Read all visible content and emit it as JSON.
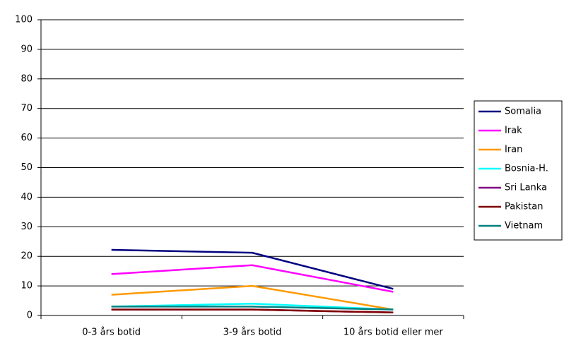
{
  "chart_data": {
    "type": "line",
    "categories": [
      "0-3 års botid",
      "3-9 års botid",
      "10 års botid eller mer"
    ],
    "series": [
      {
        "name": "Somalia",
        "color": "#000080",
        "values": [
          22.2,
          21.2,
          9
        ]
      },
      {
        "name": "Irak",
        "color": "#ff00ff",
        "values": [
          14,
          17,
          8
        ]
      },
      {
        "name": "Iran",
        "color": "#ff9900",
        "values": [
          7,
          10,
          2
        ]
      },
      {
        "name": "Bosnia-H.",
        "color": "#00ffff",
        "values": [
          3,
          4,
          2
        ]
      },
      {
        "name": "Sri Lanka",
        "color": "#800080",
        "values": [
          2,
          2,
          1
        ]
      },
      {
        "name": "Pakistan",
        "color": "#800000",
        "values": [
          2,
          2,
          1
        ]
      },
      {
        "name": "Vietnam",
        "color": "#008080",
        "values": [
          3,
          3,
          2
        ]
      }
    ],
    "ylim": [
      0,
      100
    ],
    "yticks": [
      0,
      10,
      20,
      30,
      40,
      50,
      60,
      70,
      80,
      90,
      100
    ],
    "grid": true,
    "legend": "right"
  }
}
